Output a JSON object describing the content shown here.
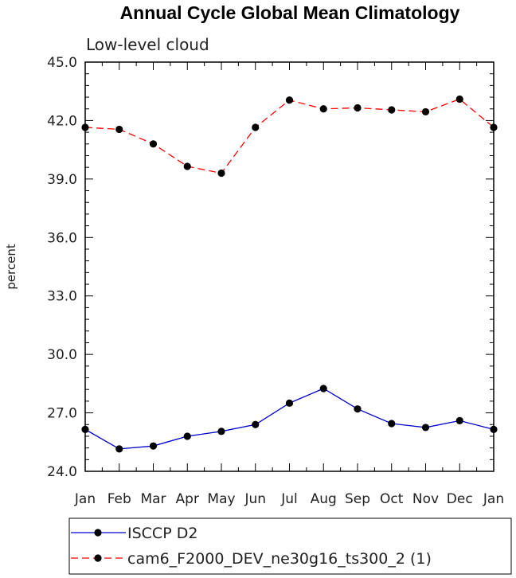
{
  "chart_data": {
    "type": "line",
    "title": "Annual Cycle Global Mean Climatology",
    "subtitle": "Low-level cloud",
    "ylabel": "percent",
    "xlabel": "",
    "categories": [
      "Jan",
      "Feb",
      "Mar",
      "Apr",
      "May",
      "Jun",
      "Jul",
      "Aug",
      "Sep",
      "Oct",
      "Nov",
      "Dec",
      "Jan"
    ],
    "ylim": [
      24.0,
      45.0
    ],
    "yticks": [
      "24.0",
      "27.0",
      "30.0",
      "33.0",
      "36.0",
      "39.0",
      "42.0",
      "45.0"
    ],
    "grid": false,
    "legend_position": "bottom",
    "series": [
      {
        "name": "ISCCP D2",
        "color": "#0000cc",
        "dash": "solid",
        "values": [
          26.15,
          25.15,
          25.3,
          25.8,
          26.05,
          26.4,
          27.5,
          28.25,
          27.2,
          26.45,
          26.25,
          26.6,
          26.15
        ]
      },
      {
        "name": "cam6_F2000_DEV_ne30g16_ts300_2 (1)",
        "color": "#ff0000",
        "dash": "dashed",
        "values": [
          41.65,
          41.55,
          40.8,
          39.65,
          39.3,
          41.65,
          43.05,
          42.6,
          42.65,
          42.55,
          42.45,
          43.1,
          41.65
        ]
      }
    ]
  }
}
